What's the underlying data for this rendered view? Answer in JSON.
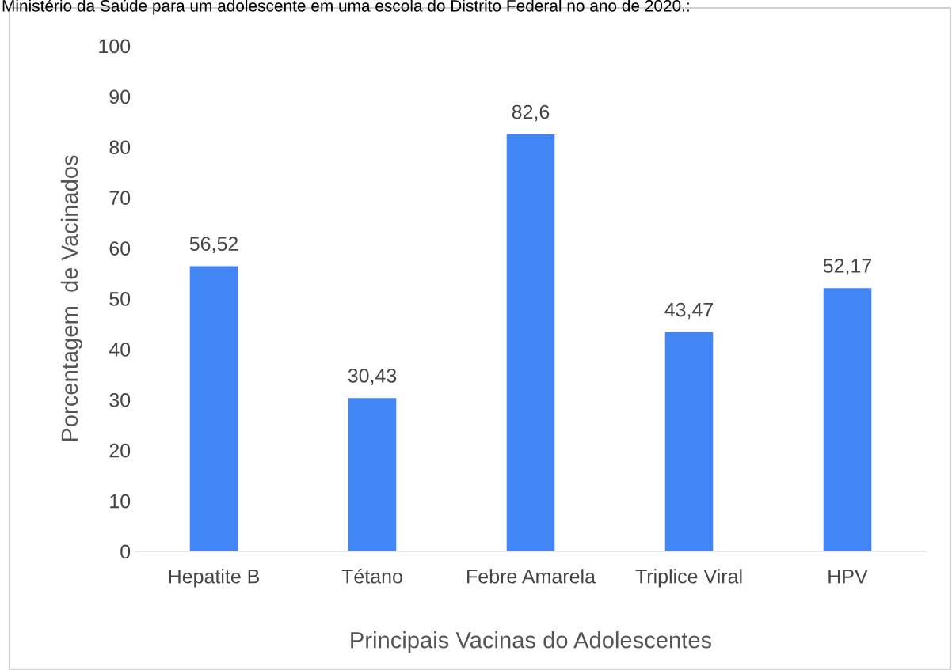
{
  "chart_data": {
    "type": "bar",
    "annotations": [
      "Ministério da Saúde para um adolescente em uma escola do Distrito Federal no ano de 2020.:"
    ],
    "xlabel": "Principais Vacinas do Adolescentes",
    "ylabel": "Porcentagem  de Vacinados",
    "categories": [
      "Hepatite B",
      "Tétano",
      "Febre Amarela",
      "Triplice Viral",
      "HPV"
    ],
    "values": [
      56.52,
      30.43,
      82.6,
      43.47,
      52.17
    ],
    "value_labels": [
      "56,52",
      "30,43",
      "82,6",
      "43,47",
      "52,17"
    ],
    "color": "#4285f4",
    "ylim": [
      0,
      100
    ],
    "yticks": [
      0,
      10,
      20,
      30,
      40,
      50,
      60,
      70,
      80,
      90,
      100
    ],
    "grid": false,
    "legend": false
  }
}
